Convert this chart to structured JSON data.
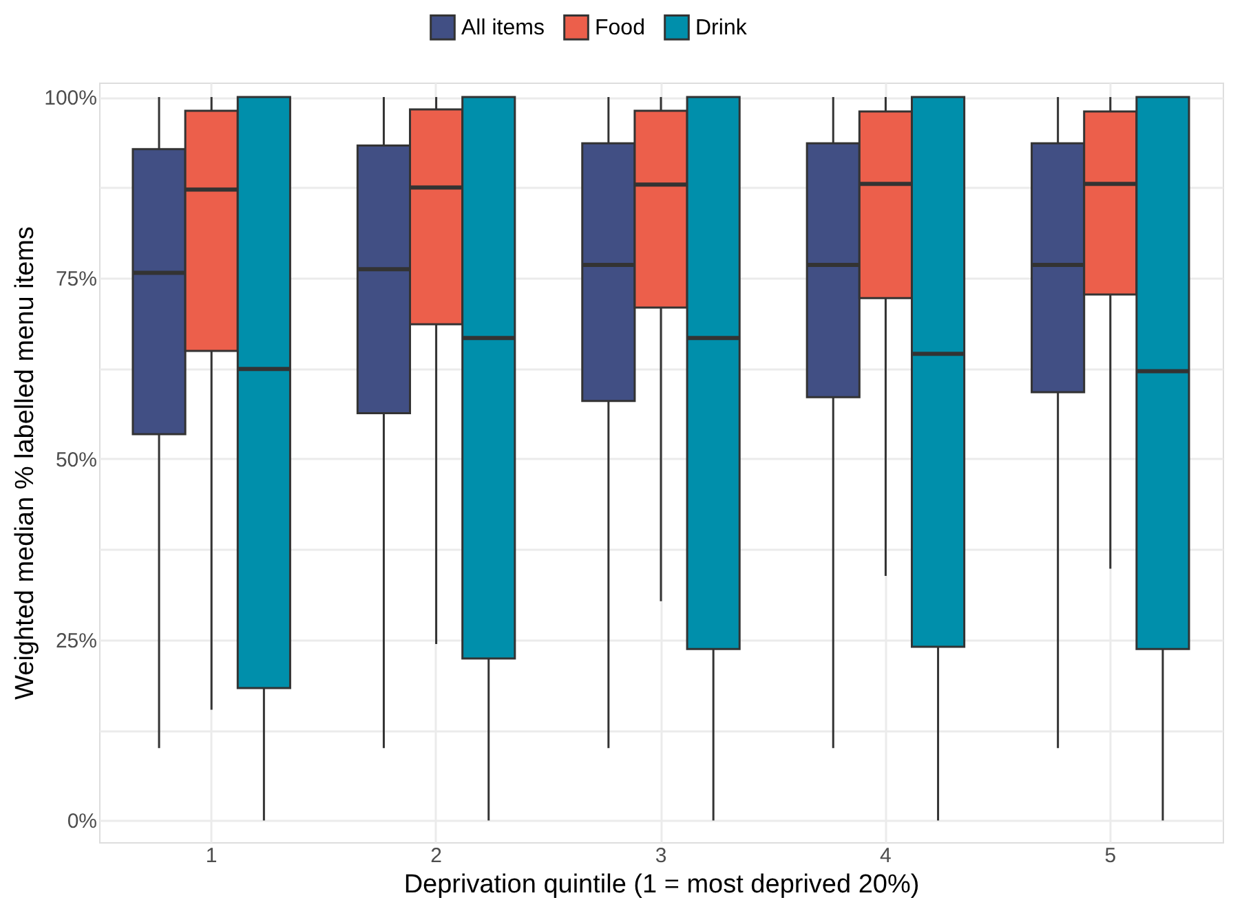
{
  "chart_data": {
    "type": "box",
    "xlabel": "Deprivation quintile (1 = most deprived 20%)",
    "ylabel": "Weighted median % labelled menu items",
    "categories": [
      "1",
      "2",
      "3",
      "4",
      "5"
    ],
    "ylim": [
      -3,
      102
    ],
    "yticks": [
      {
        "value": 0,
        "label": "0%"
      },
      {
        "value": 12.5,
        "label": null
      },
      {
        "value": 25,
        "label": "25%"
      },
      {
        "value": 37.5,
        "label": null
      },
      {
        "value": 50,
        "label": "50%"
      },
      {
        "value": 62.5,
        "label": null
      },
      {
        "value": 75,
        "label": "75%"
      },
      {
        "value": 87.5,
        "label": null
      },
      {
        "value": 100,
        "label": "100%"
      }
    ],
    "grid": true,
    "legend": "top",
    "series": [
      {
        "name": "All items",
        "color": "#414f84",
        "boxes": [
          {
            "low": 10,
            "q1": 53.4,
            "median": 75.7,
            "q3": 92.8,
            "high": 100
          },
          {
            "low": 10,
            "q1": 56.3,
            "median": 76.2,
            "q3": 93.3,
            "high": 100
          },
          {
            "low": 10,
            "q1": 58,
            "median": 76.8,
            "q3": 93.6,
            "high": 100
          },
          {
            "low": 10,
            "q1": 58.5,
            "median": 76.8,
            "q3": 93.6,
            "high": 100
          },
          {
            "low": 10,
            "q1": 59.2,
            "median": 76.8,
            "q3": 93.6,
            "high": 100
          }
        ]
      },
      {
        "name": "Food",
        "color": "#ec5f4b",
        "boxes": [
          {
            "low": 15.3,
            "q1": 64.9,
            "median": 87.2,
            "q3": 98.1,
            "high": 100
          },
          {
            "low": 24.4,
            "q1": 68.6,
            "median": 87.5,
            "q3": 98.3,
            "high": 100
          },
          {
            "low": 30.3,
            "q1": 70.9,
            "median": 87.9,
            "q3": 98.1,
            "high": 100
          },
          {
            "low": 33.8,
            "q1": 72.2,
            "median": 88,
            "q3": 98,
            "high": 100
          },
          {
            "low": 34.8,
            "q1": 72.7,
            "median": 88,
            "q3": 98,
            "high": 100
          }
        ]
      },
      {
        "name": "Drink",
        "color": "#008fab",
        "boxes": [
          {
            "low": 0,
            "q1": 18.3,
            "median": 62.4,
            "q3": 100,
            "high": 100
          },
          {
            "low": 0,
            "q1": 22.4,
            "median": 66.7,
            "q3": 100,
            "high": 100
          },
          {
            "low": 0,
            "q1": 23.7,
            "median": 66.7,
            "q3": 100,
            "high": 100
          },
          {
            "low": 0,
            "q1": 24,
            "median": 64.5,
            "q3": 100,
            "high": 100
          },
          {
            "low": 0,
            "q1": 23.7,
            "median": 62.1,
            "q3": 100,
            "high": 100
          }
        ]
      }
    ]
  }
}
